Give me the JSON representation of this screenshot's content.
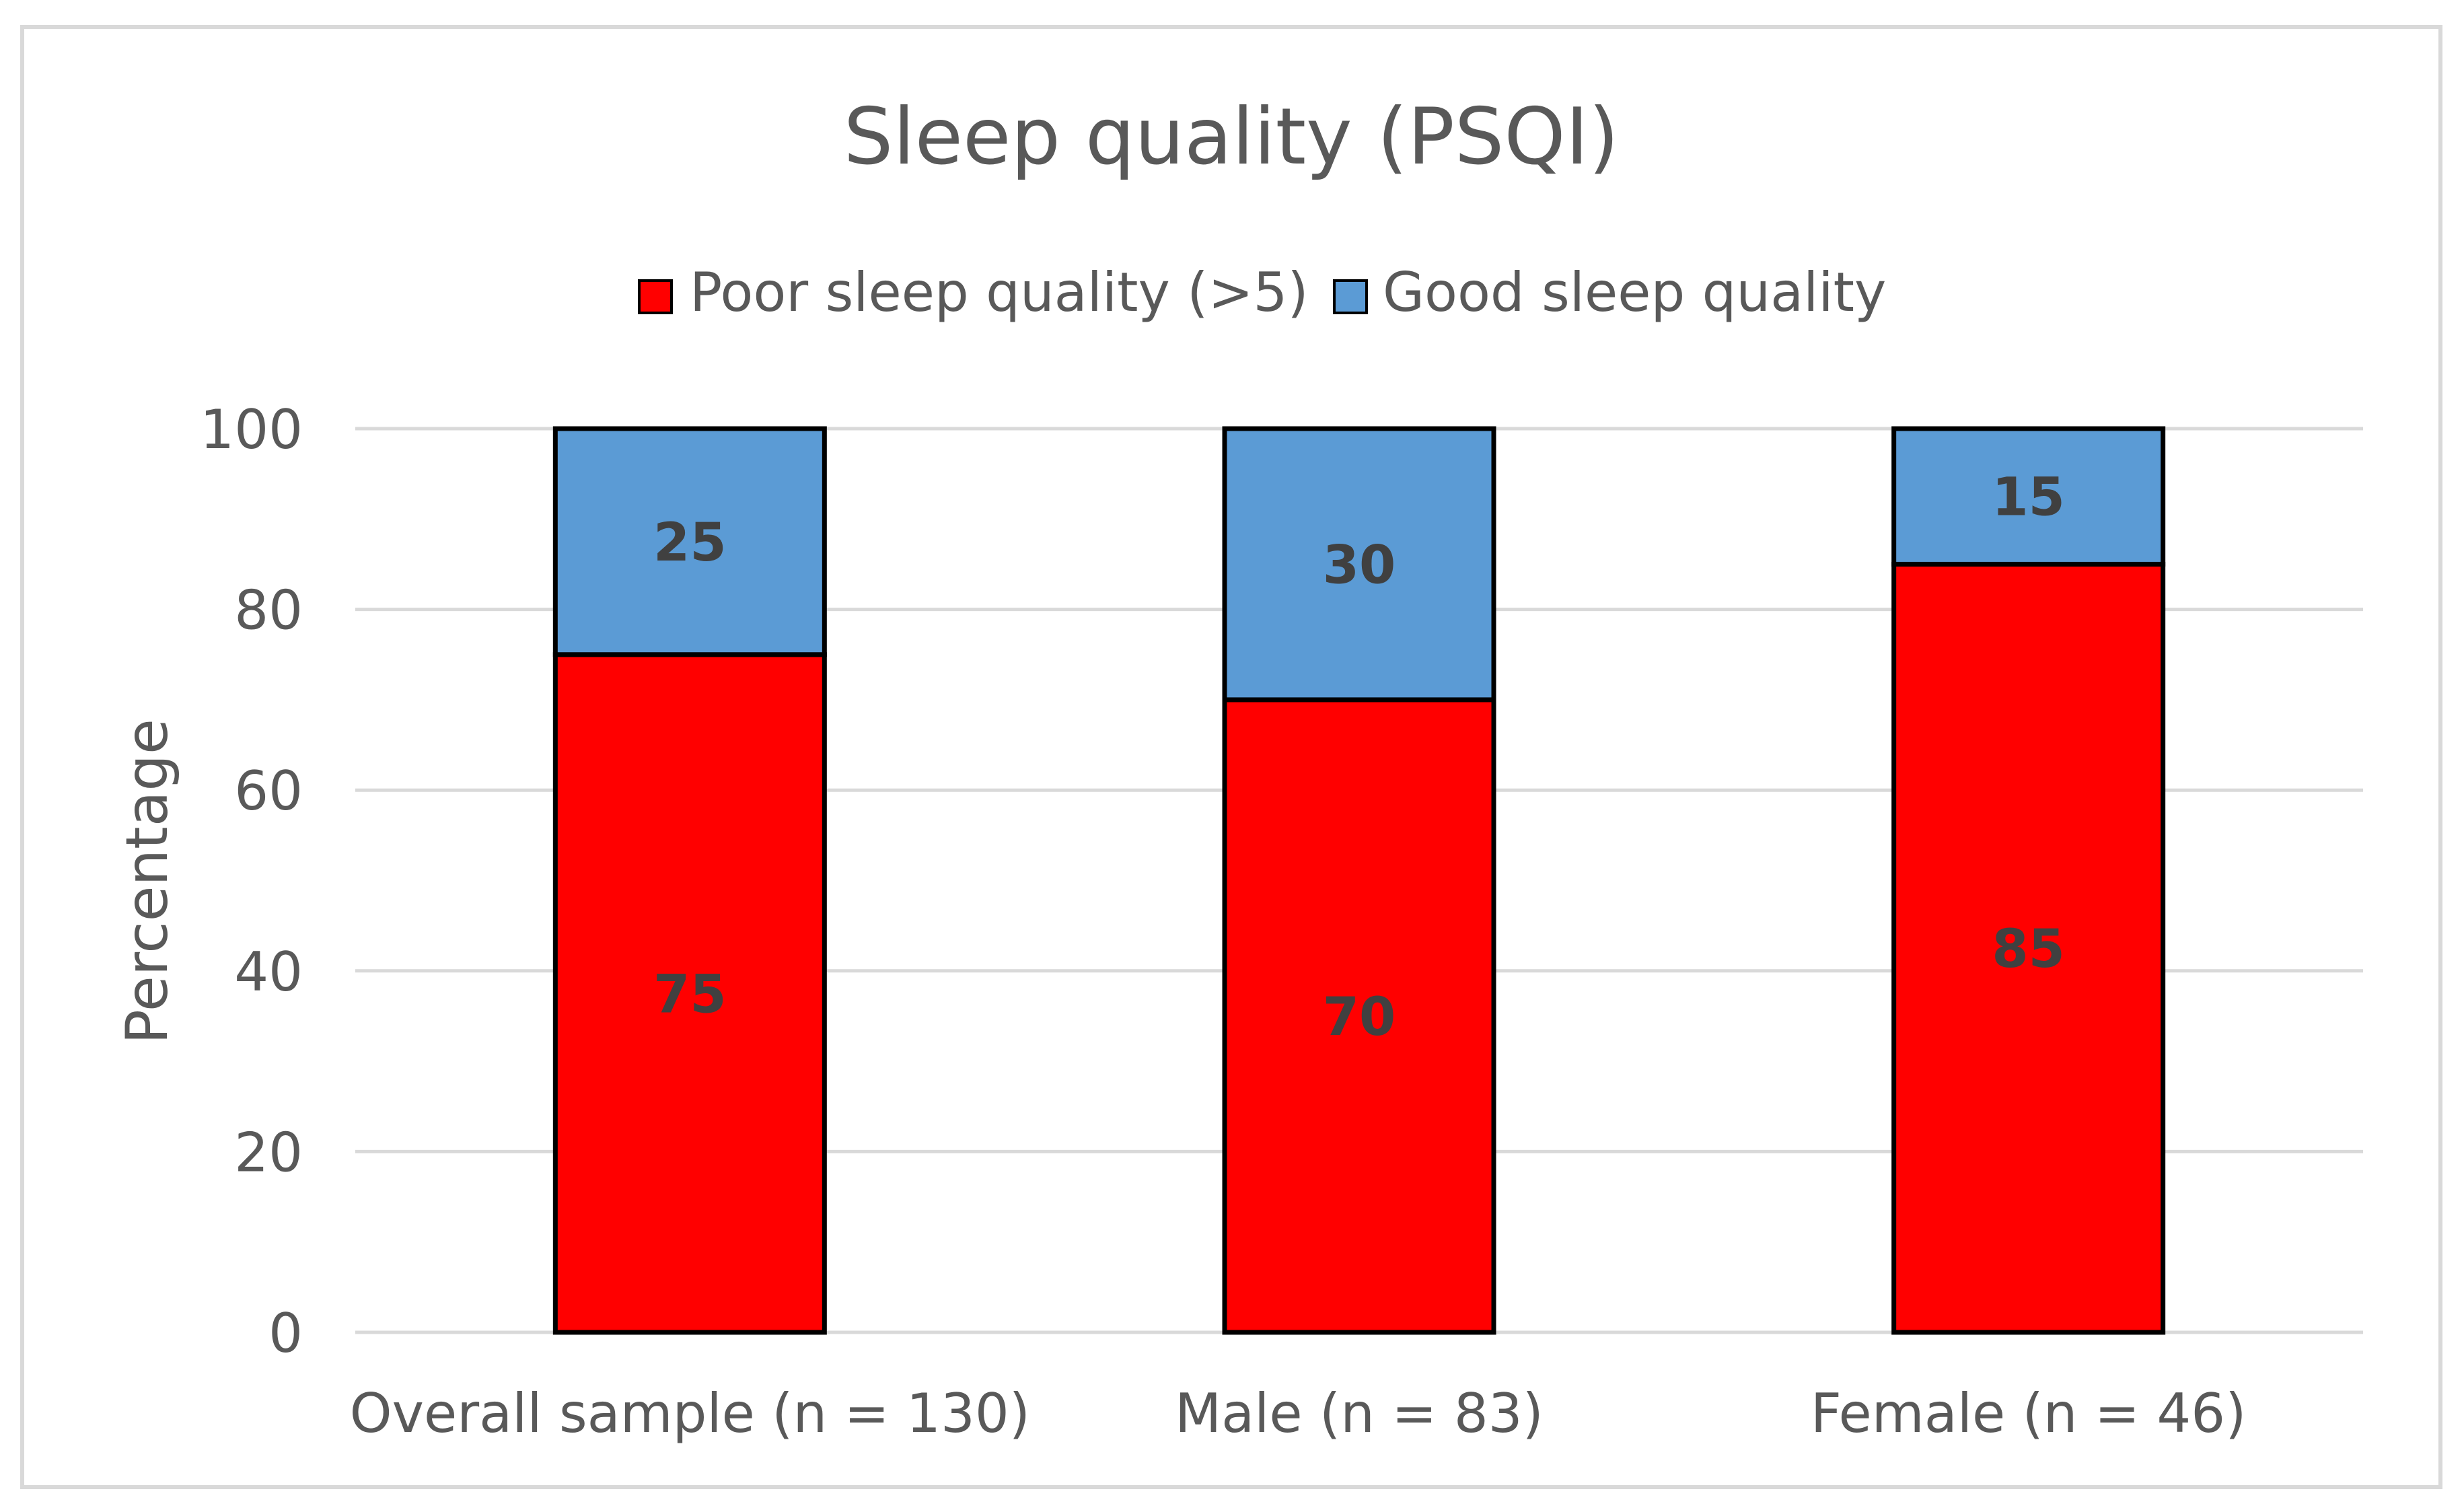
{
  "chart_data": {
    "type": "bar",
    "stacked": true,
    "title": "Sleep quality (PSQI)",
    "xlabel": "",
    "ylabel": "Percentage",
    "categories": [
      "Overall sample (n = 130)",
      "Male (n = 83)",
      "Female (n = 46)"
    ],
    "series": [
      {
        "name": "Poor sleep quality (>5)",
        "values": [
          75,
          70,
          85
        ],
        "color": "#ff0000"
      },
      {
        "name": "Good sleep quality",
        "values": [
          25,
          30,
          15
        ],
        "color": "#5b9bd5"
      }
    ],
    "ylim": [
      0,
      100
    ],
    "yticks": [
      0,
      20,
      40,
      60,
      80,
      100
    ],
    "grid": true,
    "legend_position": "top-center",
    "data_labels": true,
    "colors": {
      "frame_border": "#d9d9d9",
      "gridline": "#d9d9d9",
      "text": "#595959",
      "data_label": "#404040",
      "bar_outline": "#000000"
    }
  }
}
